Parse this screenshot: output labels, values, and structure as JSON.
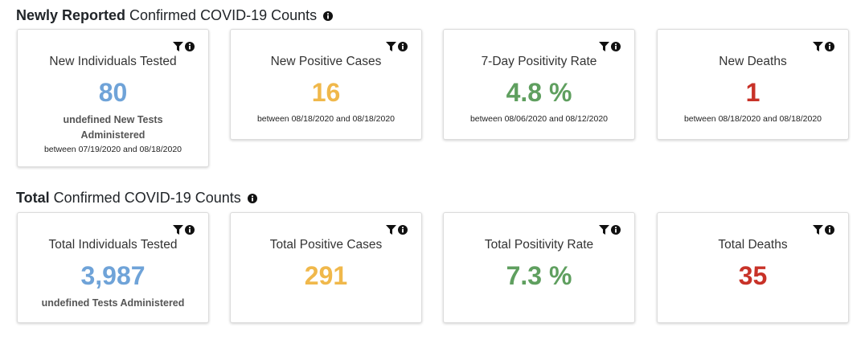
{
  "colors": {
    "blue": "#6fa3d8",
    "orange": "#f0b84b",
    "green": "#5f9f5f",
    "red": "#c83228"
  },
  "icons": [
    "filter-icon",
    "info-icon"
  ],
  "newly_reported": {
    "title_bold": "Newly Reported",
    "title_rest": "Confirmed COVID-19 Counts",
    "cards": [
      {
        "title": "New Individuals Tested",
        "value": "80",
        "subtext": "undefined New Tests Administered",
        "range": "between 07/19/2020 and 08/18/2020"
      },
      {
        "title": "New Positive Cases",
        "value": "16",
        "range": "between 08/18/2020 and 08/18/2020"
      },
      {
        "title": "7-Day Positivity Rate",
        "value": "4.8 %",
        "range": "between 08/06/2020 and 08/12/2020"
      },
      {
        "title": "New Deaths",
        "value": "1",
        "range": "between 08/18/2020 and 08/18/2020"
      }
    ]
  },
  "total": {
    "title_bold": "Total",
    "title_rest": "Confirmed COVID-19 Counts",
    "cards": [
      {
        "title": "Total Individuals Tested",
        "value": "3,987",
        "subtext": "undefined Tests Administered"
      },
      {
        "title": "Total Positive Cases",
        "value": "291"
      },
      {
        "title": "Total Positivity Rate",
        "value": "7.3 %"
      },
      {
        "title": "Total Deaths",
        "value": "35"
      }
    ]
  }
}
